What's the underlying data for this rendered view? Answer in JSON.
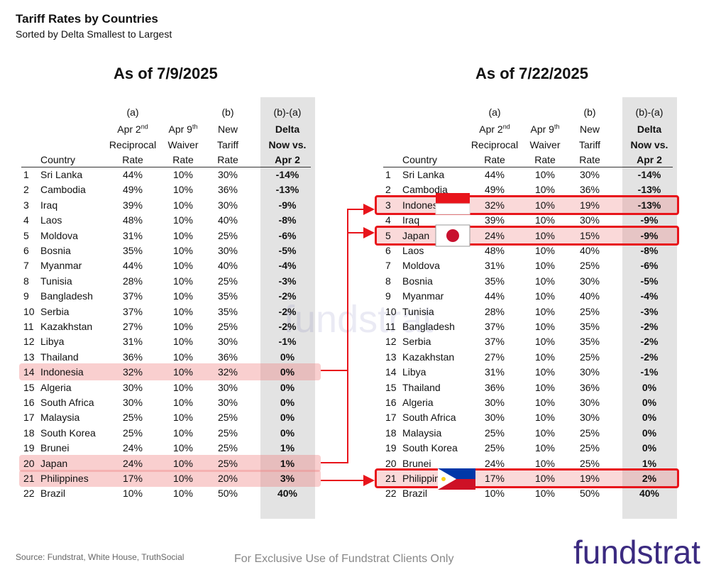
{
  "header": {
    "title": "Tariff Rates by Countries",
    "subtitle": "Sorted by Delta Smallest to Largest"
  },
  "tables": [
    {
      "title": "As of 7/9/2025",
      "columns": [
        {
          "lines": [
            "Country"
          ]
        },
        {
          "marker": "(a)",
          "lines": [
            "Apr 2",
            "Reciprocal",
            "Rate"
          ],
          "sup": "nd"
        },
        {
          "lines": [
            "Apr 9",
            "Waiver",
            "Rate"
          ],
          "sup": "th"
        },
        {
          "marker": "(b)",
          "lines": [
            "New",
            "Tariff",
            "Rate"
          ]
        },
        {
          "marker": "(b)-(a)",
          "lines": [
            "Delta",
            "Now vs.",
            "Apr 2"
          ]
        }
      ],
      "rows": [
        [
          "1",
          "Sri Lanka",
          "44%",
          "10%",
          "30%",
          "-14%"
        ],
        [
          "2",
          "Cambodia",
          "49%",
          "10%",
          "36%",
          "-13%"
        ],
        [
          "3",
          "Iraq",
          "39%",
          "10%",
          "30%",
          "-9%"
        ],
        [
          "4",
          "Laos",
          "48%",
          "10%",
          "40%",
          "-8%"
        ],
        [
          "5",
          "Moldova",
          "31%",
          "10%",
          "25%",
          "-6%"
        ],
        [
          "6",
          "Bosnia",
          "35%",
          "10%",
          "30%",
          "-5%"
        ],
        [
          "7",
          "Myanmar",
          "44%",
          "10%",
          "40%",
          "-4%"
        ],
        [
          "8",
          "Tunisia",
          "28%",
          "10%",
          "25%",
          "-3%"
        ],
        [
          "9",
          "Bangladesh",
          "37%",
          "10%",
          "35%",
          "-2%"
        ],
        [
          "10",
          "Serbia",
          "37%",
          "10%",
          "35%",
          "-2%"
        ],
        [
          "11",
          "Kazakhstan",
          "27%",
          "10%",
          "25%",
          "-2%"
        ],
        [
          "12",
          "Libya",
          "31%",
          "10%",
          "30%",
          "-1%"
        ],
        [
          "13",
          "Thailand",
          "36%",
          "10%",
          "36%",
          "0%"
        ],
        [
          "14",
          "Indonesia",
          "32%",
          "10%",
          "32%",
          "0%"
        ],
        [
          "15",
          "Algeria",
          "30%",
          "10%",
          "30%",
          "0%"
        ],
        [
          "16",
          "South Africa",
          "30%",
          "10%",
          "30%",
          "0%"
        ],
        [
          "17",
          "Malaysia",
          "25%",
          "10%",
          "25%",
          "0%"
        ],
        [
          "18",
          "South Korea",
          "25%",
          "10%",
          "25%",
          "0%"
        ],
        [
          "19",
          "Brunei",
          "24%",
          "10%",
          "25%",
          "1%"
        ],
        [
          "20",
          "Japan",
          "24%",
          "10%",
          "25%",
          "1%"
        ],
        [
          "21",
          "Philippines",
          "17%",
          "10%",
          "20%",
          "3%"
        ],
        [
          "22",
          "Brazil",
          "10%",
          "10%",
          "50%",
          "40%"
        ]
      ]
    },
    {
      "title": "As of 7/22/2025",
      "columns": [
        {
          "lines": [
            "Country"
          ]
        },
        {
          "marker": "(a)",
          "lines": [
            "Apr 2",
            "Reciprocal",
            "Rate"
          ],
          "sup": "nd"
        },
        {
          "lines": [
            "Apr 9",
            "Waiver",
            "Rate"
          ],
          "sup": "th"
        },
        {
          "marker": "(b)",
          "lines": [
            "New",
            "Tariff",
            "Rate"
          ]
        },
        {
          "marker": "(b)-(a)",
          "lines": [
            "Delta",
            "Now vs.",
            "Apr 2"
          ]
        }
      ],
      "rows": [
        [
          "1",
          "Sri Lanka",
          "44%",
          "10%",
          "30%",
          "-14%"
        ],
        [
          "2",
          "Cambodia",
          "49%",
          "10%",
          "36%",
          "-13%"
        ],
        [
          "3",
          "Indonesia",
          "32%",
          "10%",
          "19%",
          "-13%"
        ],
        [
          "4",
          "Iraq",
          "39%",
          "10%",
          "30%",
          "-9%"
        ],
        [
          "5",
          "Japan",
          "24%",
          "10%",
          "15%",
          "-9%"
        ],
        [
          "6",
          "Laos",
          "48%",
          "10%",
          "40%",
          "-8%"
        ],
        [
          "7",
          "Moldova",
          "31%",
          "10%",
          "25%",
          "-6%"
        ],
        [
          "8",
          "Bosnia",
          "35%",
          "10%",
          "30%",
          "-5%"
        ],
        [
          "9",
          "Myanmar",
          "44%",
          "10%",
          "40%",
          "-4%"
        ],
        [
          "10",
          "Tunisia",
          "28%",
          "10%",
          "25%",
          "-3%"
        ],
        [
          "11",
          "Bangladesh",
          "37%",
          "10%",
          "35%",
          "-2%"
        ],
        [
          "12",
          "Serbia",
          "37%",
          "10%",
          "35%",
          "-2%"
        ],
        [
          "13",
          "Kazakhstan",
          "27%",
          "10%",
          "25%",
          "-2%"
        ],
        [
          "14",
          "Libya",
          "31%",
          "10%",
          "30%",
          "-1%"
        ],
        [
          "15",
          "Thailand",
          "36%",
          "10%",
          "36%",
          "0%"
        ],
        [
          "16",
          "Algeria",
          "30%",
          "10%",
          "30%",
          "0%"
        ],
        [
          "17",
          "South Africa",
          "30%",
          "10%",
          "30%",
          "0%"
        ],
        [
          "18",
          "Malaysia",
          "25%",
          "10%",
          "25%",
          "0%"
        ],
        [
          "19",
          "South Korea",
          "25%",
          "10%",
          "25%",
          "0%"
        ],
        [
          "20",
          "Brunei",
          "24%",
          "10%",
          "25%",
          "1%"
        ],
        [
          "21",
          "Philippines",
          "17%",
          "10%",
          "19%",
          "2%"
        ],
        [
          "22",
          "Brazil",
          "10%",
          "10%",
          "50%",
          "40%"
        ]
      ]
    }
  ],
  "watermark": "fundstrat",
  "footer": {
    "source": "Source: Fundstrat, White House, TruthSocial",
    "notice": "For Exclusive Use of Fundstrat Clients Only",
    "logo": "fundstrat"
  }
}
